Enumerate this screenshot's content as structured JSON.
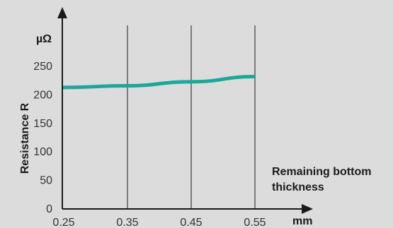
{
  "chart_data": {
    "type": "line",
    "title": "",
    "xlabel_lines": [
      "Remaining bottom",
      "thickness"
    ],
    "xunit": "mm",
    "ylabel": "Resistance R",
    "yunit": "µΩ",
    "x": [
      0.25,
      0.35,
      0.45,
      0.55
    ],
    "x_ticks": [
      "0.25",
      "0.35",
      "0.45",
      "0.55"
    ],
    "y_ticks": [
      "0",
      "50",
      "100",
      "150",
      "200",
      "250"
    ],
    "ylim": [
      0,
      250
    ],
    "series": [
      {
        "values": [
          213,
          216,
          223,
          232
        ],
        "color": "#1aa89a"
      }
    ],
    "grid": {
      "vertical": true,
      "horizontal": false
    },
    "colors": {
      "background": "#dcdcdc",
      "axis": "#1a1a1a",
      "gridline": "#1a1a1a"
    }
  }
}
